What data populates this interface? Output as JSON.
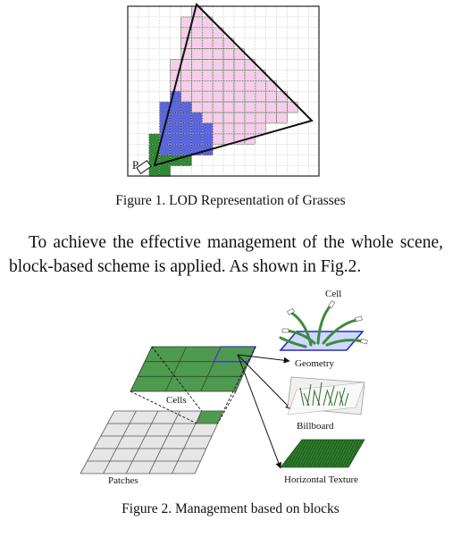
{
  "figure1": {
    "caption": "Figure 1.   LOD Representation of Grasses",
    "point_label": "P",
    "colors": {
      "pink": "#f6cdea",
      "blue": "#5a66e0",
      "green": "#2e8b33",
      "grid": "#c8c8c8",
      "outline": "#1a6a1a"
    }
  },
  "paragraph": "To achieve the effective management of the whole scene, block-based scheme is applied. As shown in Fig.2.",
  "figure2": {
    "caption": "Figure 2.   Management based on blocks",
    "labels": {
      "cells": "Cells",
      "patches": "Patches",
      "cell": "Cell",
      "geometry": "Geometry",
      "billboard": "Billboard",
      "horizontal_texture": "Horizontal Texture"
    },
    "colors": {
      "cells_fill": "#4e9a4e",
      "patch_fill": "#e6e6e6",
      "highlight": "#3b3bbf"
    }
  }
}
